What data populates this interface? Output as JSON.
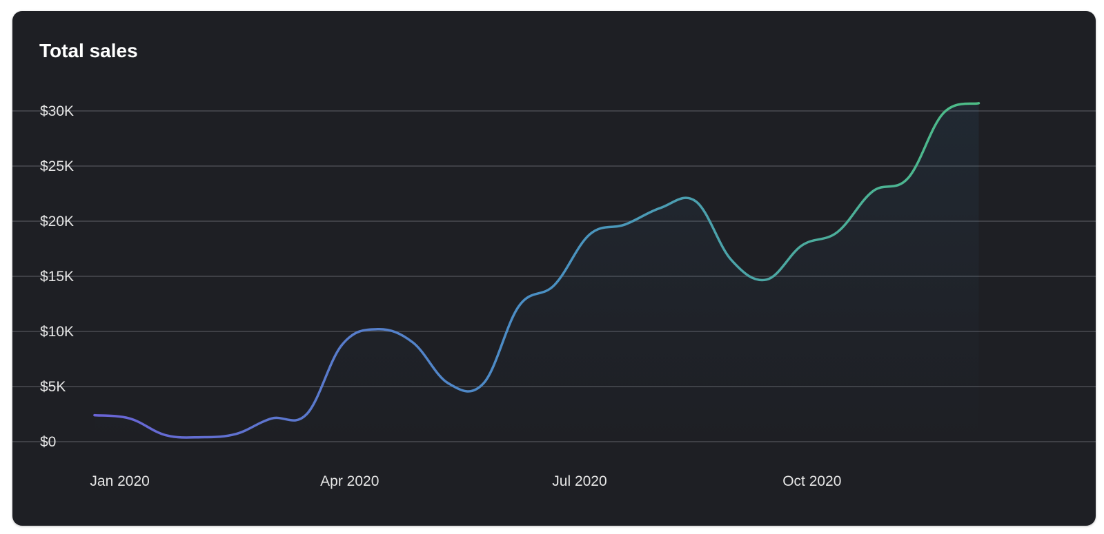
{
  "chart_data": {
    "type": "line",
    "title": "Total sales",
    "xlabel": "",
    "ylabel": "",
    "y_ticks": [
      "$0",
      "$5K",
      "$10K",
      "$15K",
      "$20K",
      "$25K",
      "$30K"
    ],
    "y_tick_values": [
      0,
      5000,
      10000,
      15000,
      20000,
      25000,
      30000
    ],
    "x_ticks": [
      "Jan 2020",
      "Apr 2020",
      "Jul 2020",
      "Oct 2020"
    ],
    "x_tick_dates": [
      "2020-01-01",
      "2020-04-01",
      "2020-07-01",
      "2020-10-01"
    ],
    "xlim": [
      "2019-12-22",
      "2020-12-31"
    ],
    "ylim": [
      0,
      30000
    ],
    "grid": true,
    "legend": false,
    "curve": "smooth",
    "series": [
      {
        "points": [
          {
            "x": "2019-12-22",
            "y": 2400
          },
          {
            "x": "2020-01-05",
            "y": 2100
          },
          {
            "x": "2020-01-19",
            "y": 600
          },
          {
            "x": "2020-02-02",
            "y": 400
          },
          {
            "x": "2020-02-16",
            "y": 700
          },
          {
            "x": "2020-03-01",
            "y": 2100
          },
          {
            "x": "2020-03-15",
            "y": 2500
          },
          {
            "x": "2020-03-29",
            "y": 8800
          },
          {
            "x": "2020-04-12",
            "y": 10200
          },
          {
            "x": "2020-04-26",
            "y": 9000
          },
          {
            "x": "2020-05-10",
            "y": 5300
          },
          {
            "x": "2020-05-24",
            "y": 5300
          },
          {
            "x": "2020-06-07",
            "y": 12300
          },
          {
            "x": "2020-06-21",
            "y": 14200
          },
          {
            "x": "2020-07-05",
            "y": 18800
          },
          {
            "x": "2020-07-19",
            "y": 19700
          },
          {
            "x": "2020-08-02",
            "y": 21200
          },
          {
            "x": "2020-08-16",
            "y": 21800
          },
          {
            "x": "2020-08-30",
            "y": 16500
          },
          {
            "x": "2020-09-13",
            "y": 14700
          },
          {
            "x": "2020-09-27",
            "y": 17800
          },
          {
            "x": "2020-10-11",
            "y": 19000
          },
          {
            "x": "2020-10-25",
            "y": 22700
          },
          {
            "x": "2020-11-08",
            "y": 23900
          },
          {
            "x": "2020-11-22",
            "y": 29800
          },
          {
            "x": "2020-12-06",
            "y": 30700
          }
        ]
      }
    ],
    "colors": {
      "line_start": "#6a64d6",
      "line_mid": "#4a8fc4",
      "line_end": "#4dbd86",
      "background": "#1e1f24",
      "grid": "#4a4c52",
      "text": "#e6e6e6",
      "title": "#ffffff"
    }
  }
}
